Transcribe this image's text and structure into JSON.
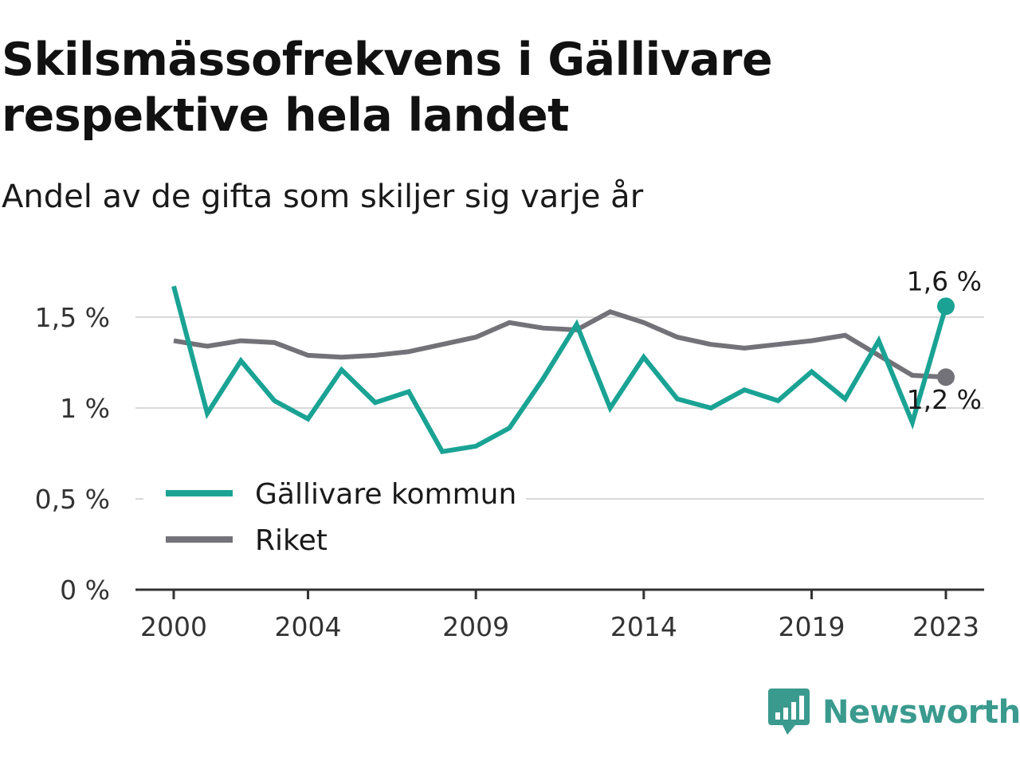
{
  "header": {
    "title": "Skilsmässofrekvens i Gällivare respektive hela landet",
    "subtitle": "Andel av de gifta som skiljer sig varje år"
  },
  "brand": {
    "name": "Newsworthy",
    "icon": "newsworthy-logo-icon",
    "color": "#3a9a8e"
  },
  "chart_data": {
    "type": "line",
    "x": [
      2000,
      2001,
      2002,
      2003,
      2004,
      2005,
      2006,
      2007,
      2008,
      2009,
      2010,
      2011,
      2012,
      2013,
      2014,
      2015,
      2016,
      2017,
      2018,
      2019,
      2020,
      2021,
      2022,
      2023
    ],
    "series": [
      {
        "name": "Gällivare kommun",
        "color": "#1aa394",
        "values": [
          1.67,
          0.97,
          1.26,
          1.04,
          0.94,
          1.21,
          1.03,
          1.09,
          0.76,
          0.79,
          0.89,
          1.16,
          1.46,
          1.0,
          1.28,
          1.05,
          1.0,
          1.1,
          1.04,
          1.2,
          1.05,
          1.37,
          0.92,
          1.56
        ],
        "end_label": "1,6 %"
      },
      {
        "name": "Riket",
        "color": "#737278",
        "values": [
          1.37,
          1.34,
          1.37,
          1.36,
          1.29,
          1.28,
          1.29,
          1.31,
          1.35,
          1.39,
          1.47,
          1.44,
          1.43,
          1.53,
          1.47,
          1.39,
          1.35,
          1.33,
          1.35,
          1.37,
          1.4,
          1.29,
          1.18,
          1.17
        ],
        "end_label": "1,2 %"
      }
    ],
    "x_ticks": [
      2000,
      2004,
      2009,
      2014,
      2019,
      2023
    ],
    "y_ticks": [
      {
        "value": 0,
        "label": "0 %"
      },
      {
        "value": 0.5,
        "label": "0,5 %"
      },
      {
        "value": 1,
        "label": "1 %"
      },
      {
        "value": 1.5,
        "label": "1,5 %"
      }
    ],
    "ylim": [
      0,
      1.7
    ],
    "xlim": [
      2000,
      2023
    ],
    "grid": true,
    "legend": "bottom-left"
  }
}
